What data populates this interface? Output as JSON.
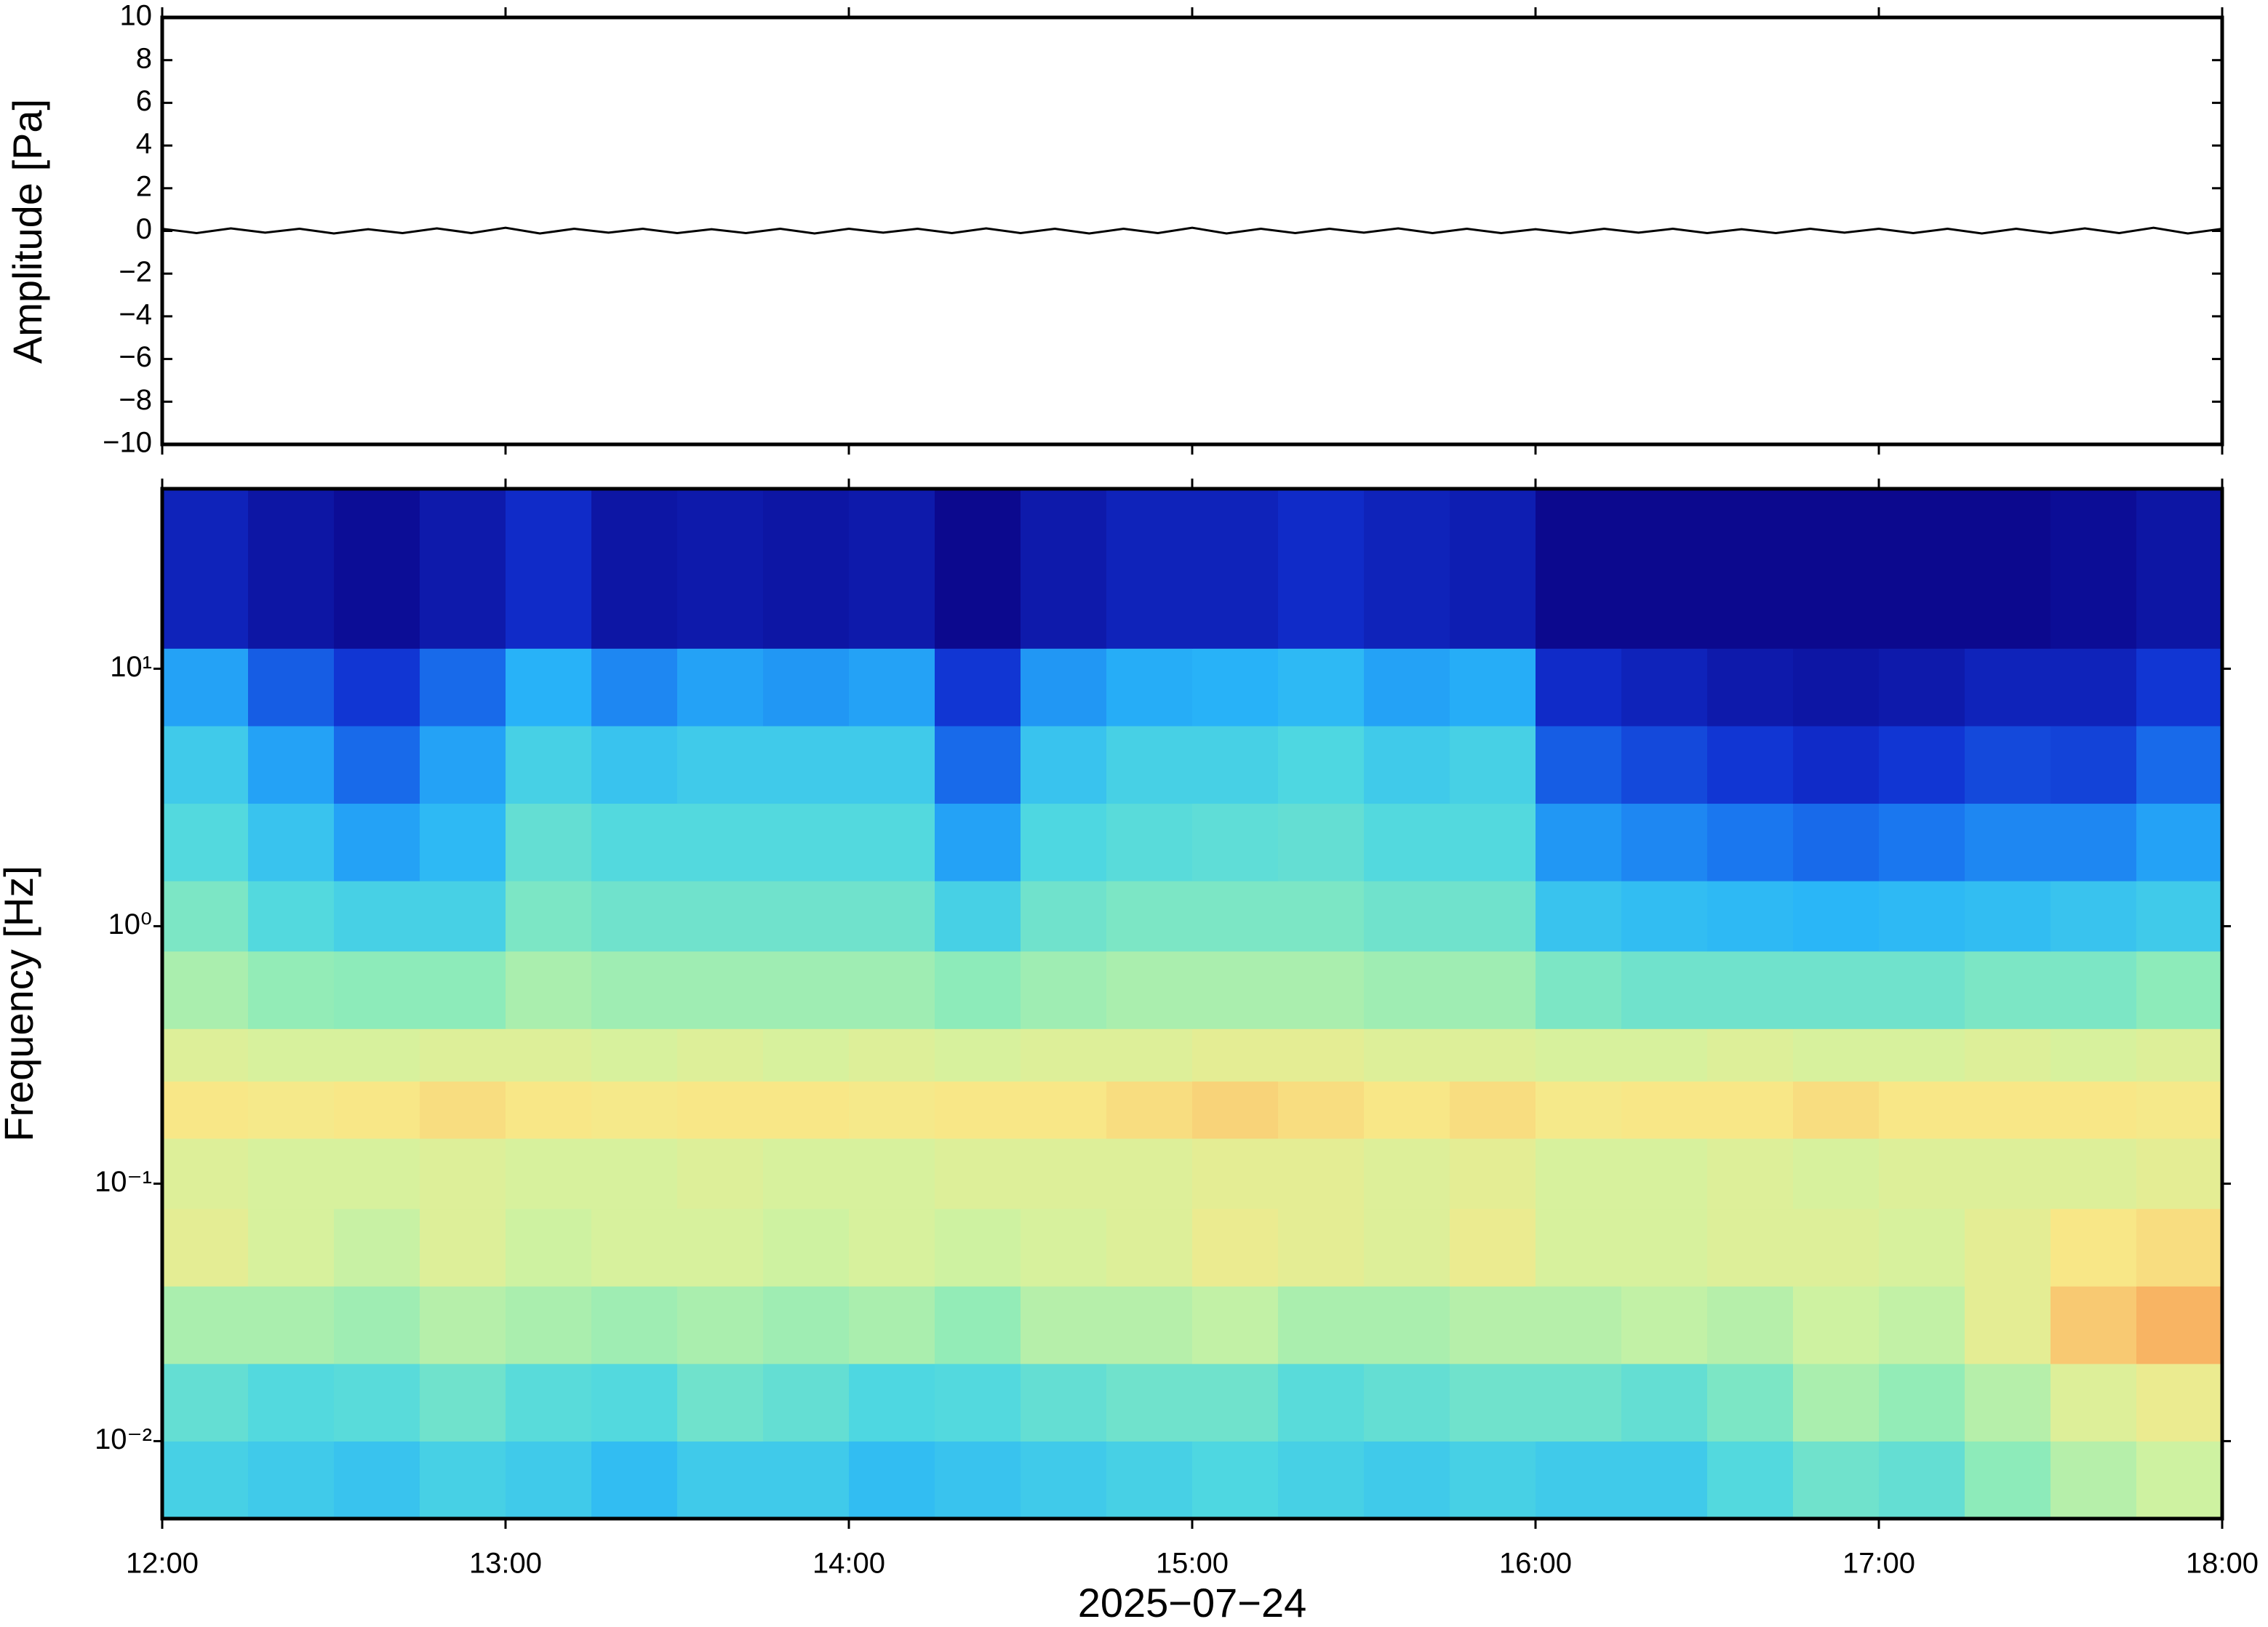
{
  "chart_data": [
    {
      "type": "line",
      "y_label": "Amplitude [Pa]",
      "ylim": [
        -10,
        10
      ],
      "yticks": [
        {
          "value": -10,
          "label": "−10"
        },
        {
          "value": -8,
          "label": "−8"
        },
        {
          "value": -6,
          "label": "−6"
        },
        {
          "value": -4,
          "label": "−4"
        },
        {
          "value": -2,
          "label": "−2"
        },
        0,
        2,
        4,
        6,
        8,
        10
      ],
      "series": [
        {
          "color": "#000000",
          "x": [
            0,
            6,
            12,
            18,
            24,
            30,
            36,
            42,
            48,
            54,
            60,
            66,
            72,
            78,
            84,
            90,
            96,
            102,
            108,
            114,
            120,
            126,
            132,
            138,
            144,
            150,
            156,
            162,
            168,
            174,
            180,
            186,
            192,
            198,
            204,
            210,
            216,
            222,
            228,
            234,
            240,
            246,
            252,
            258,
            264,
            270,
            276,
            282,
            288,
            294,
            300,
            306,
            312,
            318,
            324,
            330,
            336,
            342,
            348,
            354,
            360
          ],
          "values": [
            0.1,
            -0.1,
            0.12,
            -0.08,
            0.1,
            -0.12,
            0.08,
            -0.1,
            0.12,
            -0.1,
            0.15,
            -0.12,
            0.1,
            -0.08,
            0.1,
            -0.1,
            0.08,
            -0.1,
            0.1,
            -0.12,
            0.1,
            -0.08,
            0.1,
            -0.1,
            0.12,
            -0.1,
            0.1,
            -0.12,
            0.1,
            -0.1,
            0.15,
            -0.12,
            0.1,
            -0.1,
            0.1,
            -0.08,
            0.12,
            -0.1,
            0.1,
            -0.1,
            0.08,
            -0.1,
            0.1,
            -0.08,
            0.1,
            -0.1,
            0.08,
            -0.1,
            0.1,
            -0.08,
            0.1,
            -0.1,
            0.1,
            -0.12,
            0.1,
            -0.1,
            0.12,
            -0.1,
            0.15,
            -0.12,
            0.1
          ]
        }
      ]
    },
    {
      "type": "heatmap",
      "y_label": "Frequency [Hz]",
      "x_label": "2025−07−24",
      "xlim": [
        0,
        360
      ],
      "xticks": [
        {
          "value": 0,
          "label": "12:00"
        },
        {
          "value": 60,
          "label": "13:00"
        },
        {
          "value": 120,
          "label": "14:00"
        },
        {
          "value": 180,
          "label": "15:00"
        },
        {
          "value": 240,
          "label": "16:00"
        },
        {
          "value": 300,
          "label": "17:00"
        },
        {
          "value": 360,
          "label": "18:00"
        }
      ],
      "ylim": [
        0.005,
        50
      ],
      "log_y": true,
      "yticks": [
        {
          "value": 0.01,
          "label": "10⁻²"
        },
        {
          "value": 0.1,
          "label": "10⁻¹"
        },
        {
          "value": 1,
          "label": "10⁰"
        },
        {
          "value": 10,
          "label": "10¹"
        }
      ],
      "colormap": [
        "#0b0080",
        "#1030d0",
        "#1a78f0",
        "#28b4f8",
        "#50d8e0",
        "#90ecb8",
        "#d2f2a0",
        "#f8e888",
        "#f8b060",
        "#f07830"
      ],
      "x_edges": [
        0,
        15,
        30,
        45,
        60,
        75,
        90,
        105,
        120,
        135,
        150,
        165,
        180,
        195,
        210,
        225,
        240,
        255,
        270,
        285,
        300,
        315,
        330,
        345,
        360
      ],
      "y_edges": [
        0.005,
        0.01,
        0.02,
        0.04,
        0.08,
        0.15,
        0.25,
        0.4,
        0.8,
        1.5,
        3,
        6,
        12,
        50
      ],
      "z": [
        [
          0.42,
          0.4,
          0.38,
          0.42,
          0.4,
          0.36,
          0.4,
          0.4,
          0.36,
          0.38,
          0.4,
          0.42,
          0.44,
          0.42,
          0.4,
          0.42,
          0.4,
          0.4,
          0.45,
          0.5,
          0.48,
          0.55,
          0.62,
          0.66
        ],
        [
          0.48,
          0.45,
          0.46,
          0.5,
          0.46,
          0.45,
          0.5,
          0.48,
          0.44,
          0.45,
          0.48,
          0.5,
          0.5,
          0.46,
          0.48,
          0.5,
          0.5,
          0.48,
          0.52,
          0.6,
          0.56,
          0.62,
          0.7,
          0.74
        ],
        [
          0.6,
          0.6,
          0.58,
          0.62,
          0.6,
          0.58,
          0.6,
          0.58,
          0.6,
          0.56,
          0.62,
          0.62,
          0.64,
          0.6,
          0.6,
          0.62,
          0.62,
          0.64,
          0.62,
          0.66,
          0.64,
          0.72,
          0.84,
          0.88
        ],
        [
          0.72,
          0.68,
          0.65,
          0.7,
          0.66,
          0.68,
          0.68,
          0.66,
          0.68,
          0.66,
          0.68,
          0.7,
          0.74,
          0.72,
          0.7,
          0.74,
          0.68,
          0.68,
          0.7,
          0.7,
          0.68,
          0.72,
          0.78,
          0.8
        ],
        [
          0.7,
          0.68,
          0.68,
          0.7,
          0.68,
          0.68,
          0.7,
          0.68,
          0.68,
          0.7,
          0.7,
          0.7,
          0.72,
          0.72,
          0.7,
          0.72,
          0.68,
          0.68,
          0.7,
          0.68,
          0.7,
          0.7,
          0.7,
          0.72
        ],
        [
          0.78,
          0.77,
          0.78,
          0.8,
          0.78,
          0.77,
          0.78,
          0.78,
          0.77,
          0.78,
          0.78,
          0.8,
          0.82,
          0.8,
          0.78,
          0.8,
          0.77,
          0.78,
          0.78,
          0.8,
          0.78,
          0.78,
          0.78,
          0.77
        ],
        [
          0.7,
          0.68,
          0.68,
          0.7,
          0.7,
          0.68,
          0.7,
          0.68,
          0.7,
          0.68,
          0.7,
          0.7,
          0.72,
          0.72,
          0.7,
          0.7,
          0.68,
          0.68,
          0.7,
          0.68,
          0.68,
          0.7,
          0.68,
          0.7
        ],
        [
          0.6,
          0.56,
          0.55,
          0.55,
          0.6,
          0.58,
          0.58,
          0.58,
          0.58,
          0.55,
          0.58,
          0.6,
          0.6,
          0.6,
          0.58,
          0.58,
          0.52,
          0.5,
          0.5,
          0.5,
          0.5,
          0.52,
          0.52,
          0.55
        ],
        [
          0.52,
          0.45,
          0.42,
          0.42,
          0.52,
          0.5,
          0.5,
          0.5,
          0.5,
          0.42,
          0.5,
          0.52,
          0.52,
          0.52,
          0.5,
          0.5,
          0.38,
          0.36,
          0.35,
          0.34,
          0.35,
          0.36,
          0.38,
          0.4
        ],
        [
          0.45,
          0.38,
          0.3,
          0.35,
          0.48,
          0.45,
          0.45,
          0.45,
          0.45,
          0.3,
          0.44,
          0.46,
          0.47,
          0.48,
          0.45,
          0.45,
          0.28,
          0.25,
          0.22,
          0.2,
          0.22,
          0.25,
          0.25,
          0.3
        ],
        [
          0.4,
          0.3,
          0.2,
          0.3,
          0.42,
          0.38,
          0.4,
          0.4,
          0.4,
          0.2,
          0.38,
          0.42,
          0.42,
          0.44,
          0.4,
          0.42,
          0.18,
          0.15,
          0.12,
          0.1,
          0.12,
          0.15,
          0.14,
          0.2
        ],
        [
          0.3,
          0.18,
          0.12,
          0.2,
          0.33,
          0.25,
          0.3,
          0.28,
          0.3,
          0.12,
          0.28,
          0.32,
          0.33,
          0.35,
          0.3,
          0.32,
          0.1,
          0.08,
          0.06,
          0.05,
          0.06,
          0.08,
          0.08,
          0.12
        ],
        [
          0.08,
          0.05,
          0.03,
          0.06,
          0.1,
          0.05,
          0.06,
          0.05,
          0.06,
          0.02,
          0.06,
          0.08,
          0.08,
          0.1,
          0.08,
          0.07,
          0.02,
          0.02,
          0.02,
          0.02,
          0.02,
          0.02,
          0.03,
          0.05
        ]
      ]
    }
  ]
}
